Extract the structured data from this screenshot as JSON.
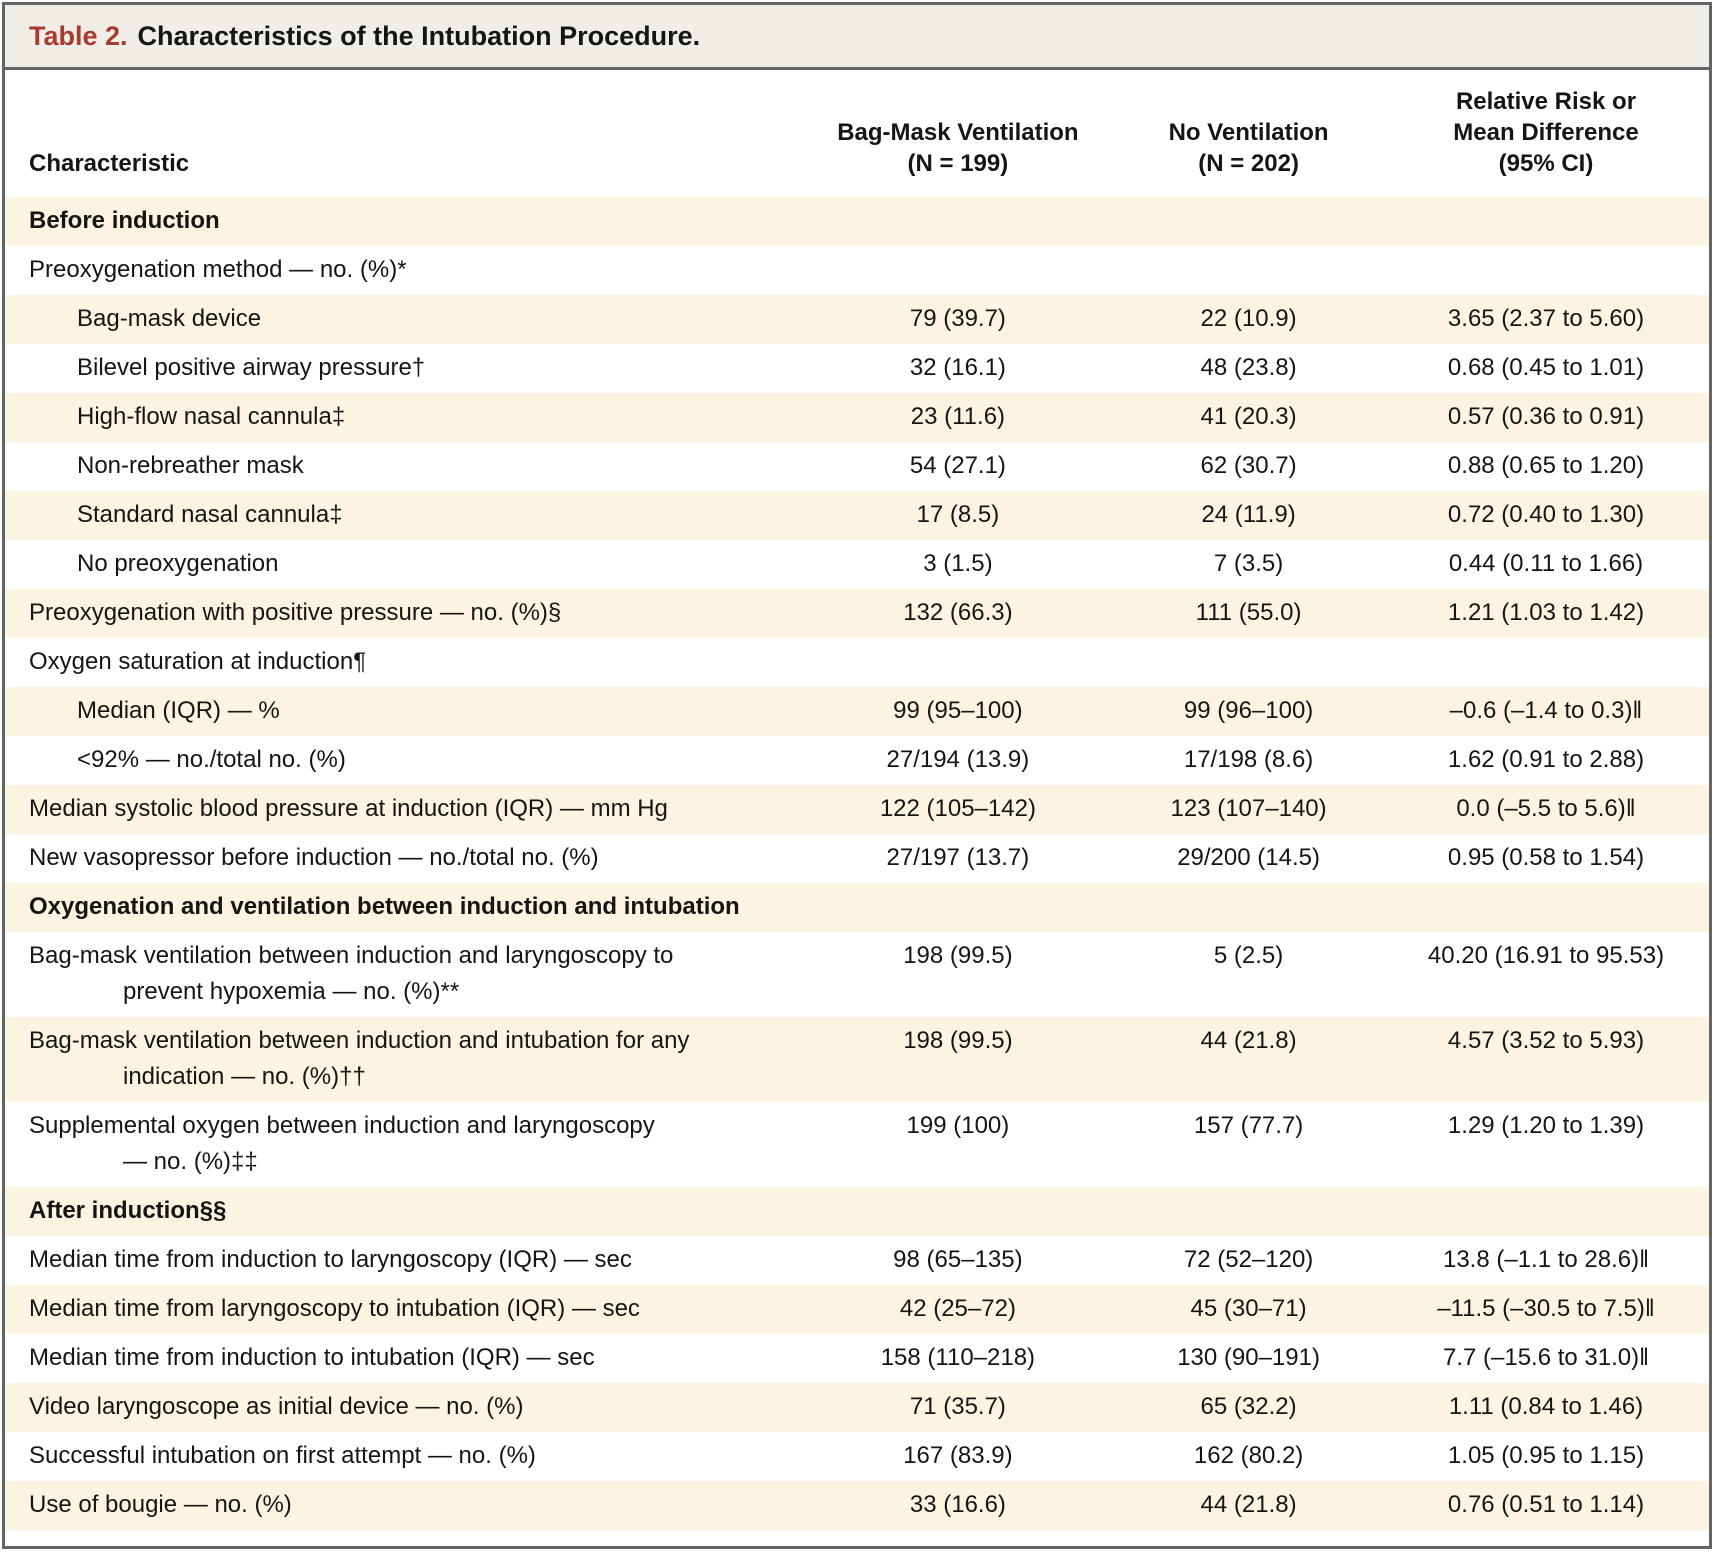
{
  "colors": {
    "title_red": "#a93a30",
    "row_cream": "#fdf3e1",
    "titlebar_bg": "#f1eee7",
    "border_gray": "#636466"
  },
  "table": {
    "title_label": "Table 2.",
    "title_text": "Characteristics of the Intubation Procedure.",
    "header": {
      "characteristic": "Characteristic",
      "col2_line1": "Bag-Mask Ventilation",
      "col2_line2": "(N = 199)",
      "col3_line1": "No Ventilation",
      "col3_line2": "(N = 202)",
      "col4_line1": "Relative Risk or",
      "col4_line2": "Mean Difference",
      "col4_line3": "(95% CI)"
    },
    "rows": [
      {
        "type": "section",
        "lines": [
          "Before induction"
        ],
        "values": []
      },
      {
        "type": "item",
        "lines": [
          "Preoxygenation method — no. (%)*"
        ],
        "values": []
      },
      {
        "type": "sub",
        "lines": [
          "Bag-mask device"
        ],
        "values": [
          "79 (39.7)",
          "22 (10.9)",
          "3.65 (2.37 to 5.60)"
        ]
      },
      {
        "type": "sub",
        "lines": [
          "Bilevel positive airway pressure†"
        ],
        "values": [
          "32 (16.1)",
          "48 (23.8)",
          "0.68 (0.45 to 1.01)"
        ]
      },
      {
        "type": "sub",
        "lines": [
          "High-flow nasal cannula‡"
        ],
        "values": [
          "23 (11.6)",
          "41 (20.3)",
          "0.57 (0.36 to 0.91)"
        ]
      },
      {
        "type": "sub",
        "lines": [
          "Non-rebreather mask"
        ],
        "values": [
          "54 (27.1)",
          "62 (30.7)",
          "0.88 (0.65 to 1.20)"
        ]
      },
      {
        "type": "sub",
        "lines": [
          "Standard nasal cannula‡"
        ],
        "values": [
          "17 (8.5)",
          "24 (11.9)",
          "0.72 (0.40 to 1.30)"
        ]
      },
      {
        "type": "sub",
        "lines": [
          "No preoxygenation"
        ],
        "values": [
          "3 (1.5)",
          "7 (3.5)",
          "0.44 (0.11 to 1.66)"
        ]
      },
      {
        "type": "item",
        "lines": [
          "Preoxygenation with positive pressure — no. (%)§"
        ],
        "values": [
          "132 (66.3)",
          "111 (55.0)",
          "1.21 (1.03 to 1.42)"
        ]
      },
      {
        "type": "item",
        "lines": [
          "Oxygen saturation at induction¶"
        ],
        "values": []
      },
      {
        "type": "sub",
        "lines": [
          "Median (IQR) — %"
        ],
        "values": [
          "99 (95–100)",
          "99 (96–100)",
          "–0.6 (–1.4 to 0.3)‖"
        ]
      },
      {
        "type": "sub",
        "lines": [
          "<92% — no./total no. (%)"
        ],
        "values": [
          "27/194 (13.9)",
          "17/198 (8.6)",
          "1.62 (0.91 to 2.88)"
        ]
      },
      {
        "type": "item",
        "lines": [
          "Median systolic blood pressure at induction (IQR) — mm Hg"
        ],
        "values": [
          "122 (105–142)",
          "123 (107–140)",
          "0.0 (–5.5 to 5.6)‖"
        ]
      },
      {
        "type": "item",
        "lines": [
          "New vasopressor before induction — no./total no. (%)"
        ],
        "values": [
          "27/197 (13.7)",
          "29/200 (14.5)",
          "0.95 (0.58 to 1.54)"
        ]
      },
      {
        "type": "section",
        "lines": [
          "Oxygenation and ventilation between induction and intubation"
        ],
        "values": []
      },
      {
        "type": "item",
        "lines": [
          "Bag-mask ventilation between induction and laryngoscopy to",
          "prevent hypoxemia — no. (%)**"
        ],
        "values": [
          "198 (99.5)",
          "5 (2.5)",
          "40.20 (16.91 to 95.53)"
        ]
      },
      {
        "type": "item",
        "lines": [
          "Bag-mask ventilation between induction and intubation for any",
          "indication — no. (%)††"
        ],
        "values": [
          "198 (99.5)",
          "44 (21.8)",
          "4.57 (3.52 to 5.93)"
        ]
      },
      {
        "type": "item",
        "lines": [
          "Supplemental oxygen between induction and laryngoscopy",
          "— no. (%)‡‡"
        ],
        "values": [
          "199 (100)",
          "157 (77.7)",
          "1.29 (1.20 to 1.39)"
        ]
      },
      {
        "type": "section",
        "lines": [
          "After induction§§"
        ],
        "values": []
      },
      {
        "type": "item",
        "lines": [
          "Median time from induction to laryngoscopy (IQR) — sec"
        ],
        "values": [
          "98 (65–135)",
          "72 (52–120)",
          "13.8 (–1.1 to 28.6)‖"
        ]
      },
      {
        "type": "item",
        "lines": [
          "Median time from laryngoscopy to intubation (IQR) — sec"
        ],
        "values": [
          "42 (25–72)",
          "45 (30–71)",
          "–11.5 (–30.5 to 7.5)‖"
        ]
      },
      {
        "type": "item",
        "lines": [
          "Median time from induction to intubation (IQR) — sec"
        ],
        "values": [
          "158 (110–218)",
          "130 (90–191)",
          "7.7 (–15.6 to 31.0)‖"
        ]
      },
      {
        "type": "item",
        "lines": [
          "Video laryngoscope as initial device — no. (%)"
        ],
        "values": [
          "71 (35.7)",
          "65 (32.2)",
          "1.11 (0.84 to 1.46)"
        ]
      },
      {
        "type": "item",
        "lines": [
          "Successful intubation on first attempt — no. (%)"
        ],
        "values": [
          "167 (83.9)",
          "162 (80.2)",
          "1.05 (0.95 to 1.15)"
        ]
      },
      {
        "type": "item",
        "lines": [
          "Use of bougie — no. (%)"
        ],
        "values": [
          "33 (16.6)",
          "44 (21.8)",
          "0.76 (0.51 to 1.14)"
        ]
      }
    ]
  }
}
